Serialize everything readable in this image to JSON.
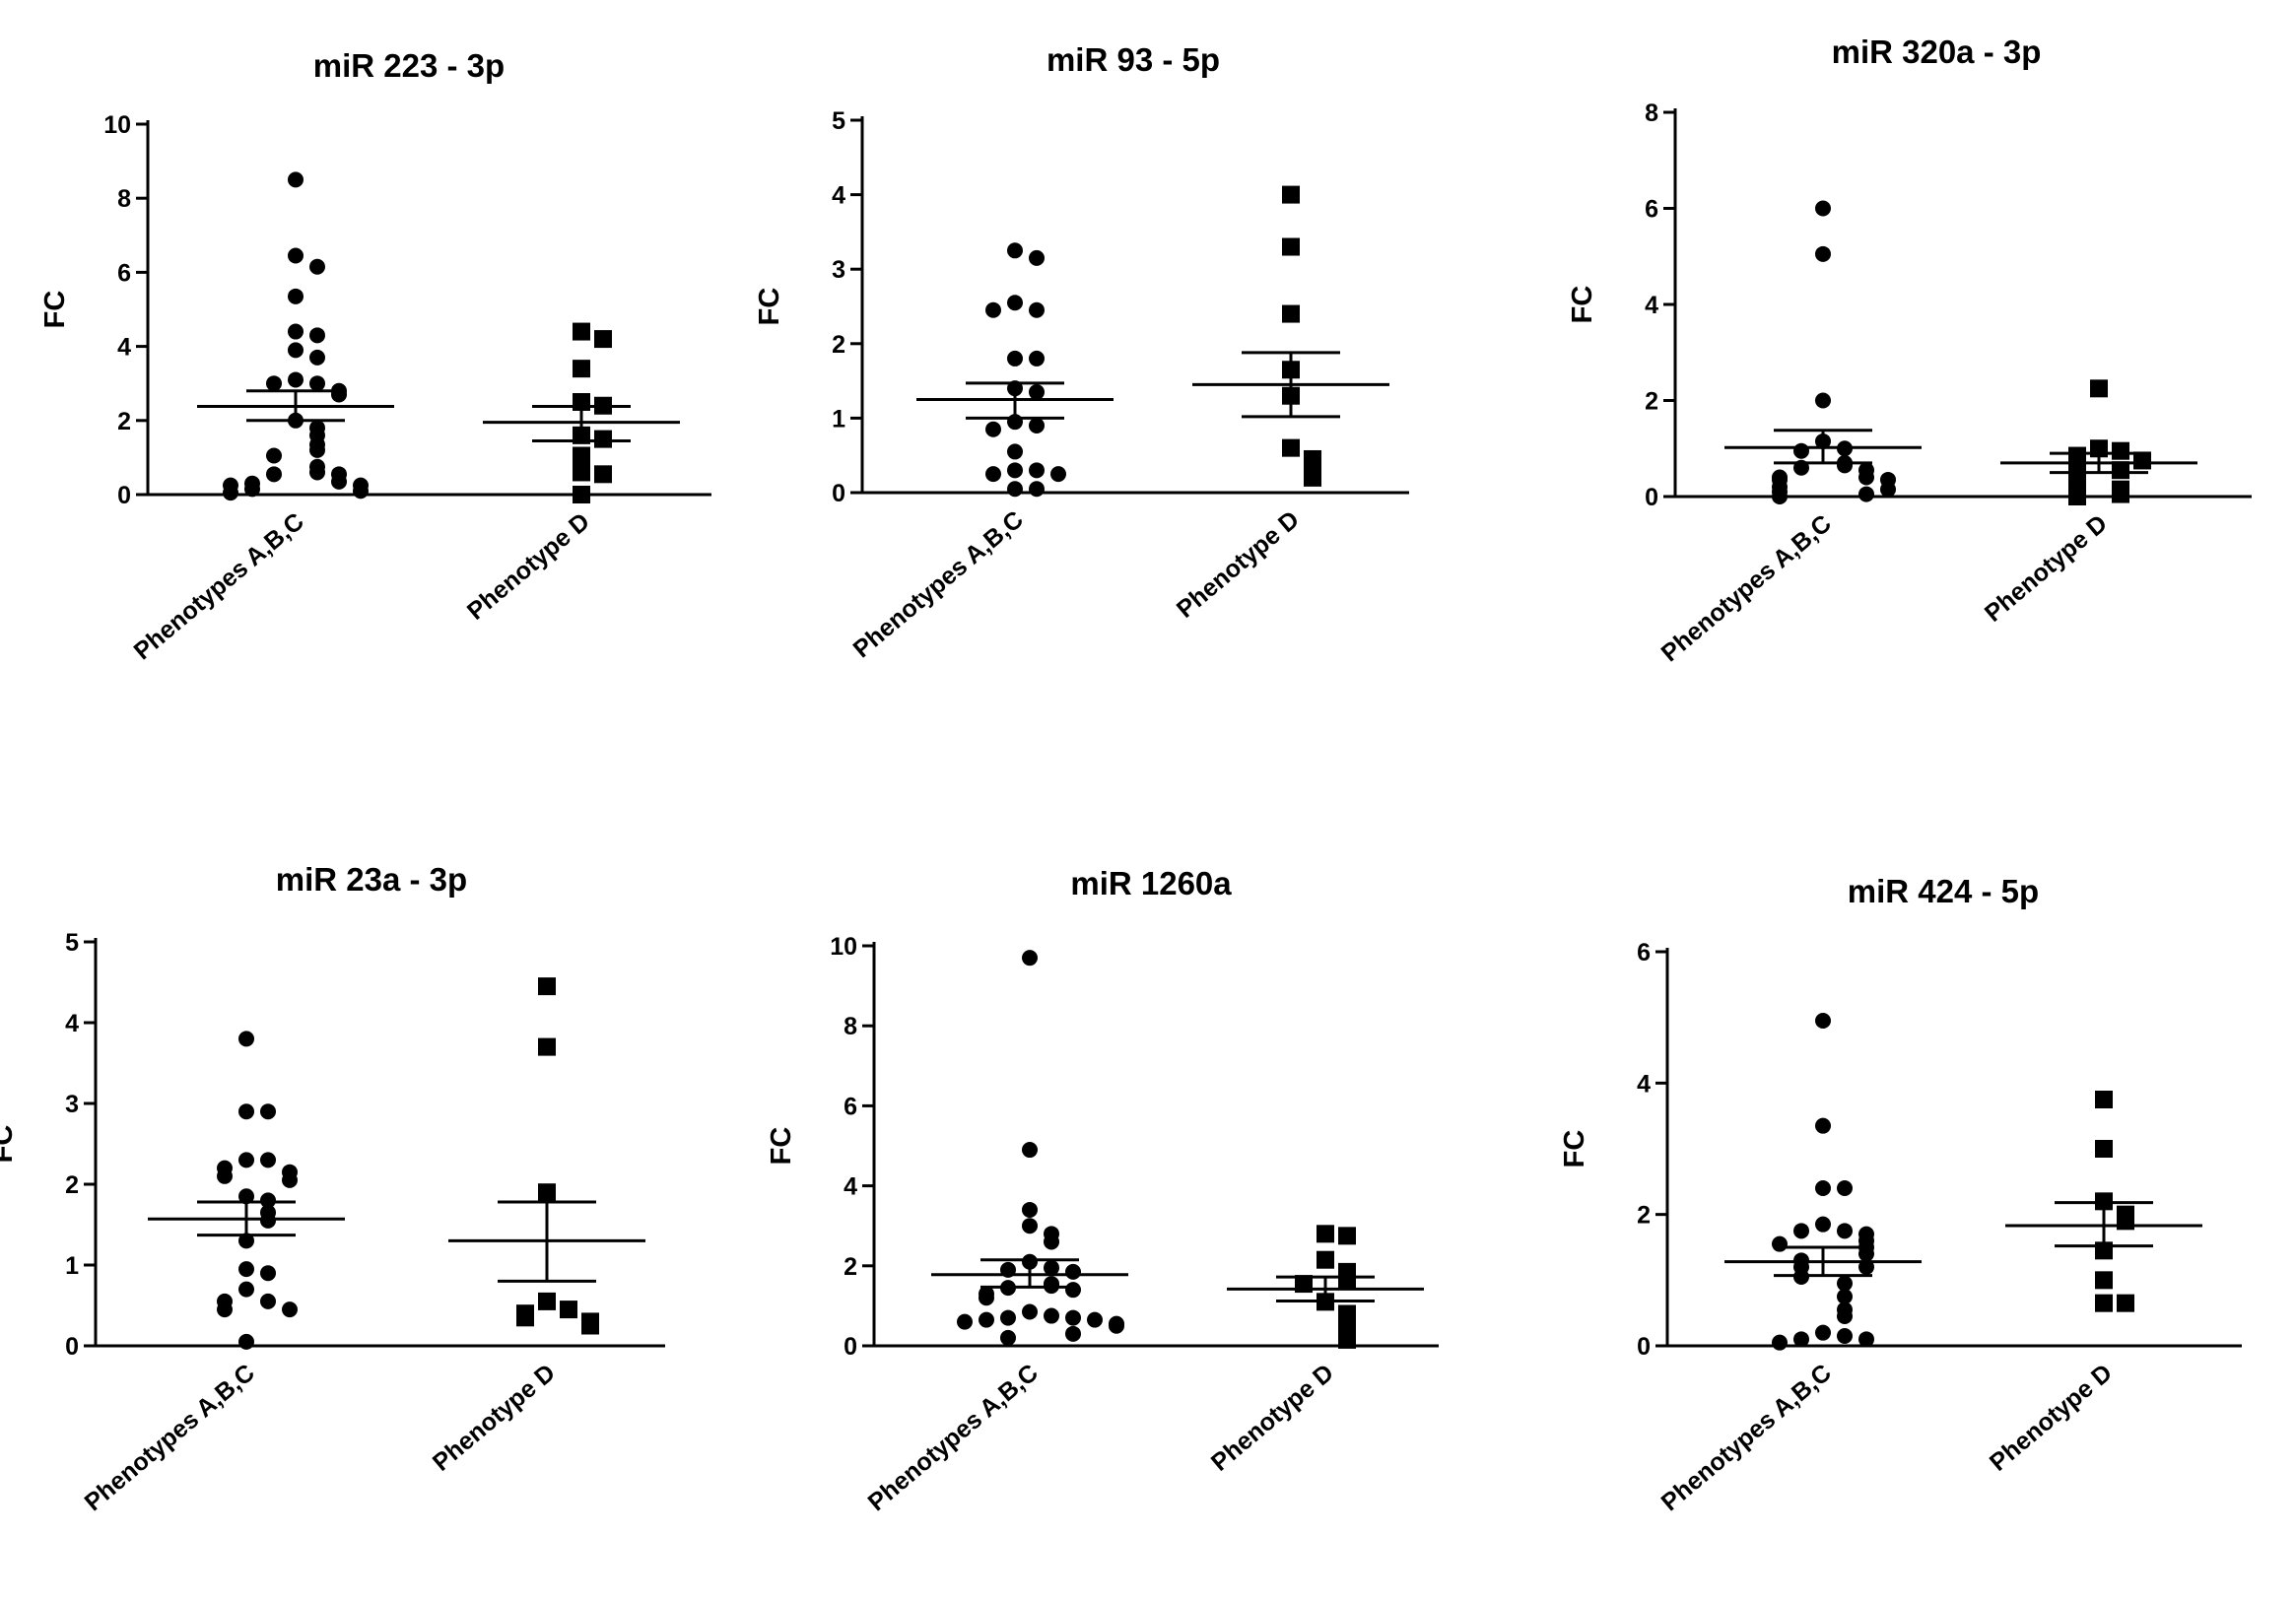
{
  "chart_data": [
    {
      "type": "scatter",
      "title": "miR 223 - 3p",
      "ylabel": "FC",
      "ylim": [
        0,
        10
      ],
      "yticks": [
        0,
        2,
        4,
        6,
        8,
        10
      ],
      "categories": [
        "Phenotypes A,B,C",
        "Phenotype D"
      ],
      "series": [
        {
          "marker": "circle",
          "values": [
            8.5,
            6.45,
            6.15,
            5.35,
            4.4,
            4.3,
            3.9,
            3.7,
            3.1,
            3.0,
            3.0,
            2.8,
            2.7,
            2.0,
            1.8,
            1.6,
            1.35,
            1.2,
            1.05,
            0.75,
            0.6,
            0.55,
            0.55,
            0.35,
            0.3,
            0.25,
            0.25,
            0.15,
            0.1,
            0.05
          ],
          "mean": 2.38,
          "sem_low": 2.0,
          "sem_high": 2.8
        },
        {
          "marker": "square",
          "values": [
            4.4,
            4.2,
            3.4,
            2.5,
            2.4,
            1.6,
            1.5,
            1.05,
            0.6,
            0.55,
            0.0
          ],
          "mean": 1.95,
          "sem_low": 1.45,
          "sem_high": 2.38
        }
      ]
    },
    {
      "type": "scatter",
      "title": "miR 93 - 5p",
      "ylabel": "FC",
      "ylim": [
        0,
        5
      ],
      "yticks": [
        0,
        1,
        2,
        3,
        4,
        5
      ],
      "categories": [
        "Phenotypes A,B,C",
        "Phenotype D"
      ],
      "series": [
        {
          "marker": "circle",
          "values": [
            3.25,
            3.15,
            2.55,
            2.45,
            2.45,
            1.8,
            1.8,
            1.4,
            1.35,
            0.95,
            0.9,
            0.85,
            0.55,
            0.3,
            0.3,
            0.25,
            0.25,
            0.05,
            0.05
          ],
          "mean": 1.25,
          "sem_low": 1.0,
          "sem_high": 1.47
        },
        {
          "marker": "square",
          "values": [
            4.0,
            3.3,
            2.4,
            1.65,
            1.3,
            0.6,
            0.45,
            0.3,
            0.2
          ],
          "mean": 1.45,
          "sem_low": 1.02,
          "sem_high": 1.88
        }
      ]
    },
    {
      "type": "scatter",
      "title": "miR 320a - 3p",
      "ylabel": "FC",
      "ylim": [
        0,
        8
      ],
      "yticks": [
        0,
        2,
        4,
        6,
        8
      ],
      "categories": [
        "Phenotypes A,B,C",
        "Phenotype D"
      ],
      "series": [
        {
          "marker": "circle",
          "values": [
            6.0,
            5.05,
            2.0,
            1.15,
            1.0,
            0.95,
            0.7,
            0.65,
            0.6,
            0.55,
            0.4,
            0.4,
            0.35,
            0.35,
            0.2,
            0.15,
            0.1,
            0.05,
            0.0
          ],
          "mean": 1.02,
          "sem_low": 0.7,
          "sem_high": 1.38
        },
        {
          "marker": "square",
          "values": [
            2.25,
            1.0,
            0.95,
            0.85,
            0.75,
            0.55,
            0.5,
            0.35,
            0.15,
            0.05,
            0.0
          ],
          "mean": 0.7,
          "sem_low": 0.5,
          "sem_high": 0.9
        }
      ]
    },
    {
      "type": "scatter",
      "title": "miR 23a - 3p",
      "ylabel": "FC",
      "ylim": [
        0,
        5
      ],
      "yticks": [
        0,
        1,
        2,
        3,
        4,
        5
      ],
      "categories": [
        "Phenotypes A,B,C",
        "Phenotype D"
      ],
      "series": [
        {
          "marker": "circle",
          "values": [
            3.8,
            2.9,
            2.9,
            2.3,
            2.3,
            2.2,
            2.15,
            2.1,
            2.05,
            1.85,
            1.8,
            1.65,
            1.55,
            1.3,
            0.95,
            0.9,
            0.7,
            0.55,
            0.55,
            0.45,
            0.45,
            0.05
          ],
          "mean": 1.57,
          "sem_low": 1.37,
          "sem_high": 1.78
        },
        {
          "marker": "square",
          "values": [
            4.45,
            3.7,
            1.9,
            0.55,
            0.45,
            0.4,
            0.35,
            0.3,
            0.25
          ],
          "mean": 1.3,
          "sem_low": 0.8,
          "sem_high": 1.78
        }
      ]
    },
    {
      "type": "scatter",
      "title": "miR 1260a",
      "ylabel": "FC",
      "ylim": [
        0,
        10
      ],
      "yticks": [
        0,
        2,
        4,
        6,
        8,
        10
      ],
      "categories": [
        "Phenotypes A,B,C",
        "Phenotype D"
      ],
      "series": [
        {
          "marker": "circle",
          "values": [
            9.7,
            4.9,
            3.4,
            3.0,
            2.8,
            2.6,
            2.1,
            1.95,
            1.9,
            1.85,
            1.55,
            1.5,
            1.45,
            1.4,
            1.3,
            1.2,
            0.85,
            0.75,
            0.7,
            0.7,
            0.65,
            0.65,
            0.6,
            0.55,
            0.5,
            0.3,
            0.2
          ],
          "mean": 1.78,
          "sem_low": 1.47,
          "sem_high": 2.15
        },
        {
          "marker": "square",
          "values": [
            2.8,
            2.75,
            2.15,
            1.85,
            1.65,
            1.55,
            1.1,
            0.8,
            0.6,
            0.4,
            0.15
          ],
          "mean": 1.42,
          "sem_low": 1.12,
          "sem_high": 1.72
        }
      ]
    },
    {
      "type": "scatter",
      "title": "miR 424 - 5p",
      "ylabel": "FC",
      "ylim": [
        0,
        6
      ],
      "yticks": [
        0,
        2,
        4,
        6
      ],
      "categories": [
        "Phenotypes A,B,C",
        "Phenotype D"
      ],
      "series": [
        {
          "marker": "circle",
          "values": [
            4.95,
            3.35,
            2.4,
            2.4,
            1.85,
            1.75,
            1.75,
            1.7,
            1.6,
            1.55,
            1.5,
            1.4,
            1.3,
            1.2,
            1.2,
            1.05,
            0.95,
            0.75,
            0.55,
            0.45,
            0.2,
            0.15,
            0.1,
            0.1,
            0.05
          ],
          "mean": 1.28,
          "sem_low": 1.07,
          "sem_high": 1.5
        },
        {
          "marker": "square",
          "values": [
            3.75,
            3.0,
            2.2,
            2.0,
            1.9,
            1.45,
            1.0,
            0.65,
            0.65
          ],
          "mean": 1.83,
          "sem_low": 1.52,
          "sem_high": 2.18
        }
      ]
    }
  ]
}
